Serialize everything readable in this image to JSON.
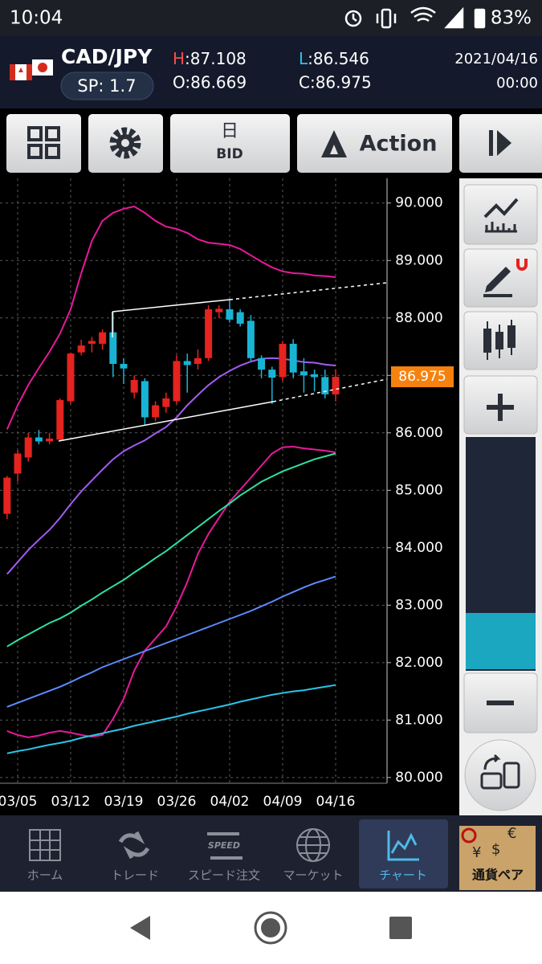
{
  "status_bar": {
    "time": "10:04",
    "battery": "83%"
  },
  "header": {
    "pair": "CAD/JPY",
    "spread": "SP: 1.7",
    "high": {
      "key": "H",
      "value": ":87.108"
    },
    "low": {
      "key": "L",
      "value": ":86.546"
    },
    "open": "O:86.669",
    "close": "C:86.975",
    "date": "2021/04/16",
    "time": "00:00"
  },
  "toolbar": {
    "period": "日",
    "price_type": "BID",
    "action": "Action"
  },
  "chart_data": {
    "type": "candlestick",
    "categories": [
      null,
      "03/05",
      null,
      null,
      null,
      null,
      "03/12",
      null,
      null,
      null,
      null,
      "03/19",
      null,
      null,
      null,
      null,
      "03/26",
      null,
      null,
      null,
      null,
      "04/02",
      null,
      null,
      null,
      null,
      "04/09",
      null,
      null,
      null,
      null,
      "04/16"
    ],
    "open": [
      84.59,
      85.29,
      85.57,
      85.92,
      85.85,
      85.88,
      86.55,
      87.4,
      87.55,
      87.55,
      87.75,
      87.2,
      86.7,
      86.9,
      86.27,
      86.45,
      86.55,
      87.25,
      87.2,
      87.3,
      88.1,
      88.15,
      88.1,
      87.95,
      87.3,
      87.1,
      86.97,
      87.55,
      87.07,
      87.02,
      86.97,
      86.669
    ],
    "high": [
      85.25,
      85.7,
      86.0,
      86.05,
      86.0,
      86.6,
      87.4,
      87.62,
      87.67,
      87.8,
      88.1,
      87.3,
      87.0,
      86.95,
      86.55,
      86.7,
      87.35,
      87.38,
      87.45,
      88.22,
      88.22,
      88.33,
      88.15,
      88.05,
      87.35,
      87.15,
      87.6,
      87.63,
      87.3,
      87.1,
      87.1,
      87.108
    ],
    "low": [
      84.5,
      85.15,
      85.5,
      85.8,
      85.8,
      85.85,
      86.5,
      87.35,
      87.4,
      87.45,
      86.97,
      86.85,
      86.6,
      86.13,
      86.2,
      86.35,
      86.5,
      86.7,
      87.1,
      87.25,
      88.0,
      87.92,
      87.85,
      87.25,
      86.95,
      86.5,
      86.9,
      86.95,
      86.7,
      86.72,
      86.6,
      86.546
    ],
    "close": [
      85.22,
      85.64,
      85.92,
      85.85,
      85.9,
      86.57,
      87.38,
      87.52,
      87.6,
      87.75,
      87.2,
      87.12,
      86.92,
      86.27,
      86.48,
      86.6,
      87.25,
      87.18,
      87.3,
      88.15,
      88.16,
      87.97,
      87.9,
      87.3,
      87.1,
      86.96,
      87.55,
      87.05,
      87.0,
      86.97,
      86.67,
      86.975
    ],
    "up_color": "#e5231f",
    "down_color": "#19b4d4",
    "indicators": [
      {
        "color": "#e8199a",
        "values": [
          86.06,
          86.48,
          86.83,
          87.13,
          87.41,
          87.73,
          88.15,
          88.78,
          89.34,
          89.69,
          89.83,
          89.9,
          89.94,
          89.83,
          89.69,
          89.59,
          89.55,
          89.48,
          89.37,
          89.31,
          89.29,
          89.27,
          89.2,
          89.09,
          88.98,
          88.88,
          88.81,
          88.78,
          88.77,
          88.74,
          88.73,
          88.71
        ]
      },
      {
        "color": "#e8199a",
        "values": [
          80.81,
          80.74,
          80.7,
          80.73,
          80.78,
          80.81,
          80.78,
          80.74,
          80.71,
          80.74,
          81.02,
          81.37,
          81.86,
          82.21,
          82.42,
          82.63,
          82.98,
          83.4,
          83.89,
          84.24,
          84.52,
          84.8,
          85.01,
          85.22,
          85.43,
          85.64,
          85.75,
          85.76,
          85.73,
          85.71,
          85.69,
          85.66
        ]
      },
      {
        "color": "#a25cf2",
        "values": [
          83.54,
          83.75,
          83.96,
          84.14,
          84.31,
          84.52,
          84.76,
          84.98,
          85.17,
          85.36,
          85.54,
          85.68,
          85.78,
          85.87,
          85.99,
          86.1,
          86.27,
          86.48,
          86.66,
          86.83,
          86.97,
          87.08,
          87.17,
          87.24,
          87.29,
          87.3,
          87.29,
          87.26,
          87.23,
          87.22,
          87.19,
          87.17
        ]
      },
      {
        "color": "#2fe0a0",
        "values": [
          82.28,
          82.39,
          82.49,
          82.59,
          82.69,
          82.77,
          82.87,
          82.99,
          83.1,
          83.22,
          83.33,
          83.44,
          83.57,
          83.69,
          83.82,
          83.94,
          84.08,
          84.22,
          84.36,
          84.5,
          84.64,
          84.77,
          84.91,
          85.03,
          85.15,
          85.24,
          85.33,
          85.4,
          85.47,
          85.54,
          85.59,
          85.64
        ]
      },
      {
        "color": "#5b8cff",
        "values": [
          81.23,
          81.3,
          81.37,
          81.44,
          81.51,
          81.58,
          81.66,
          81.75,
          81.83,
          81.92,
          81.99,
          82.06,
          82.13,
          82.2,
          82.27,
          82.34,
          82.41,
          82.48,
          82.55,
          82.62,
          82.69,
          82.76,
          82.83,
          82.9,
          82.98,
          83.06,
          83.15,
          83.23,
          83.31,
          83.38,
          83.44,
          83.5
        ]
      },
      {
        "color": "#2cc4e8",
        "values": [
          80.42,
          80.46,
          80.49,
          80.53,
          80.57,
          80.6,
          80.64,
          80.69,
          80.73,
          80.77,
          80.81,
          80.85,
          80.9,
          80.94,
          80.98,
          81.02,
          81.06,
          81.11,
          81.15,
          81.19,
          81.23,
          81.27,
          81.32,
          81.36,
          81.4,
          81.44,
          81.47,
          81.5,
          81.52,
          81.55,
          81.58,
          81.61
        ]
      }
    ],
    "current_price": 86.975,
    "current_price_color": "#f5820f",
    "ylim": [
      79.9,
      90.43
    ],
    "yticks": [
      {
        "value": 80,
        "label": "80.000"
      },
      {
        "value": 81,
        "label": "81.000"
      },
      {
        "value": 82,
        "label": "82.000"
      },
      {
        "value": 83,
        "label": "83.000"
      },
      {
        "value": 84,
        "label": "84.000"
      },
      {
        "value": 85,
        "label": "85.000"
      },
      {
        "value": 86,
        "label": "86.000"
      },
      {
        "value": 87,
        "label": "87.000"
      },
      {
        "value": 88,
        "label": "88.000"
      },
      {
        "value": 89,
        "label": "89.000"
      },
      {
        "value": 90,
        "label": "90.000"
      }
    ],
    "grid": true
  },
  "nav": {
    "items": [
      "ホーム",
      "トレード",
      "スピード注文",
      "マーケット",
      "チャート",
      "通貨ペア"
    ],
    "speed_icon": "SPEED",
    "pair_icon_symbols": [
      "€",
      "¥",
      "$"
    ]
  }
}
